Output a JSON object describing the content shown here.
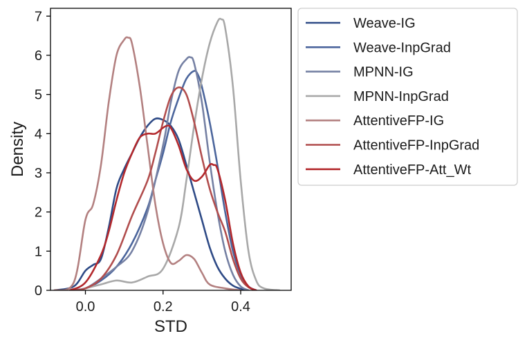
{
  "chart_data": {
    "type": "line",
    "subtype": "kde-density",
    "title": "",
    "xlabel": "STD",
    "ylabel": "Density",
    "xlim": [
      -0.09,
      0.53
    ],
    "ylim": [
      0,
      7.2
    ],
    "xticks": [
      0.0,
      0.2,
      0.4
    ],
    "xtick_labels": [
      "0.0",
      "0.2",
      "0.4"
    ],
    "yticks": [
      0,
      1,
      2,
      3,
      4,
      5,
      6,
      7
    ],
    "ytick_labels": [
      "0",
      "1",
      "2",
      "3",
      "4",
      "5",
      "6",
      "7"
    ],
    "grid": false,
    "legend_position": "outside-right-top",
    "series": [
      {
        "name": "Weave-IG",
        "color": "#2e4a86",
        "x": [
          -0.08,
          -0.03,
          0.0,
          0.02,
          0.04,
          0.06,
          0.08,
          0.1,
          0.12,
          0.14,
          0.16,
          0.18,
          0.2,
          0.22,
          0.24,
          0.26,
          0.28,
          0.3,
          0.32,
          0.34,
          0.36,
          0.38,
          0.4,
          0.42
        ],
        "y": [
          0.0,
          0.1,
          0.5,
          0.65,
          0.8,
          1.6,
          2.6,
          3.1,
          3.5,
          3.9,
          4.2,
          4.38,
          4.35,
          4.2,
          3.85,
          3.2,
          2.5,
          1.8,
          1.1,
          0.6,
          0.3,
          0.12,
          0.04,
          0.0
        ]
      },
      {
        "name": "Weave-InpGrad",
        "color": "#4b659c",
        "x": [
          -0.04,
          0.0,
          0.04,
          0.08,
          0.12,
          0.16,
          0.18,
          0.2,
          0.22,
          0.24,
          0.26,
          0.28,
          0.29,
          0.3,
          0.32,
          0.34,
          0.36,
          0.38,
          0.4,
          0.42,
          0.44
        ],
        "y": [
          0.0,
          0.05,
          0.25,
          0.6,
          1.2,
          2.1,
          2.8,
          3.5,
          4.3,
          4.9,
          5.4,
          5.6,
          5.5,
          5.2,
          4.3,
          3.2,
          2.0,
          1.0,
          0.4,
          0.1,
          0.0
        ]
      },
      {
        "name": "MPNN-IG",
        "color": "#7580a3",
        "x": [
          -0.04,
          0.0,
          0.04,
          0.08,
          0.12,
          0.16,
          0.2,
          0.22,
          0.24,
          0.26,
          0.27,
          0.28,
          0.3,
          0.32,
          0.34,
          0.36,
          0.38,
          0.4,
          0.42
        ],
        "y": [
          0.0,
          0.05,
          0.3,
          0.6,
          1.0,
          2.0,
          3.7,
          4.8,
          5.6,
          5.9,
          5.95,
          5.8,
          4.8,
          3.3,
          2.0,
          1.0,
          0.4,
          0.1,
          0.0
        ]
      },
      {
        "name": "MPNN-InpGrad",
        "color": "#a8a8a8",
        "x": [
          -0.02,
          0.04,
          0.08,
          0.12,
          0.16,
          0.2,
          0.24,
          0.26,
          0.28,
          0.3,
          0.32,
          0.34,
          0.35,
          0.36,
          0.38,
          0.4,
          0.42,
          0.44,
          0.46,
          0.5
        ],
        "y": [
          0.0,
          0.15,
          0.25,
          0.2,
          0.35,
          0.55,
          1.6,
          2.8,
          4.2,
          5.4,
          6.3,
          6.85,
          6.92,
          6.7,
          5.2,
          2.8,
          1.0,
          0.25,
          0.05,
          0.0
        ]
      },
      {
        "name": "AttentiveFP-IG",
        "color": "#b38080",
        "x": [
          -0.08,
          -0.03,
          0.0,
          0.02,
          0.04,
          0.06,
          0.08,
          0.1,
          0.11,
          0.12,
          0.14,
          0.16,
          0.18,
          0.2,
          0.22,
          0.24,
          0.26,
          0.28,
          0.3,
          0.32,
          0.36,
          0.4
        ],
        "y": [
          0.0,
          0.2,
          1.8,
          2.2,
          3.2,
          4.8,
          6.0,
          6.4,
          6.45,
          6.3,
          5.2,
          3.7,
          2.2,
          1.2,
          0.7,
          0.75,
          0.9,
          0.8,
          0.45,
          0.15,
          0.05,
          0.0
        ]
      },
      {
        "name": "AttentiveFP-InpGrad",
        "color": "#b14d4d",
        "x": [
          -0.03,
          0.0,
          0.04,
          0.08,
          0.12,
          0.16,
          0.18,
          0.2,
          0.22,
          0.24,
          0.26,
          0.28,
          0.3,
          0.32,
          0.34,
          0.36,
          0.38,
          0.4,
          0.42,
          0.44
        ],
        "y": [
          0.0,
          0.05,
          0.3,
          0.9,
          1.9,
          2.8,
          3.5,
          4.3,
          4.95,
          5.18,
          5.0,
          4.3,
          3.4,
          2.6,
          2.0,
          1.5,
          0.8,
          0.3,
          0.08,
          0.0
        ]
      },
      {
        "name": "AttentiveFP-Att_Wt",
        "color": "#b3282c",
        "x": [
          -0.04,
          0.0,
          0.04,
          0.06,
          0.08,
          0.1,
          0.12,
          0.14,
          0.16,
          0.18,
          0.2,
          0.21,
          0.22,
          0.24,
          0.26,
          0.28,
          0.3,
          0.32,
          0.33,
          0.34,
          0.36,
          0.38,
          0.4,
          0.42,
          0.44
        ],
        "y": [
          0.0,
          0.2,
          0.9,
          1.5,
          2.3,
          3.0,
          3.5,
          3.9,
          4.0,
          4.0,
          4.15,
          4.2,
          4.15,
          3.7,
          3.1,
          2.8,
          2.9,
          3.2,
          3.2,
          3.1,
          2.3,
          1.2,
          0.45,
          0.1,
          0.0
        ]
      }
    ]
  }
}
